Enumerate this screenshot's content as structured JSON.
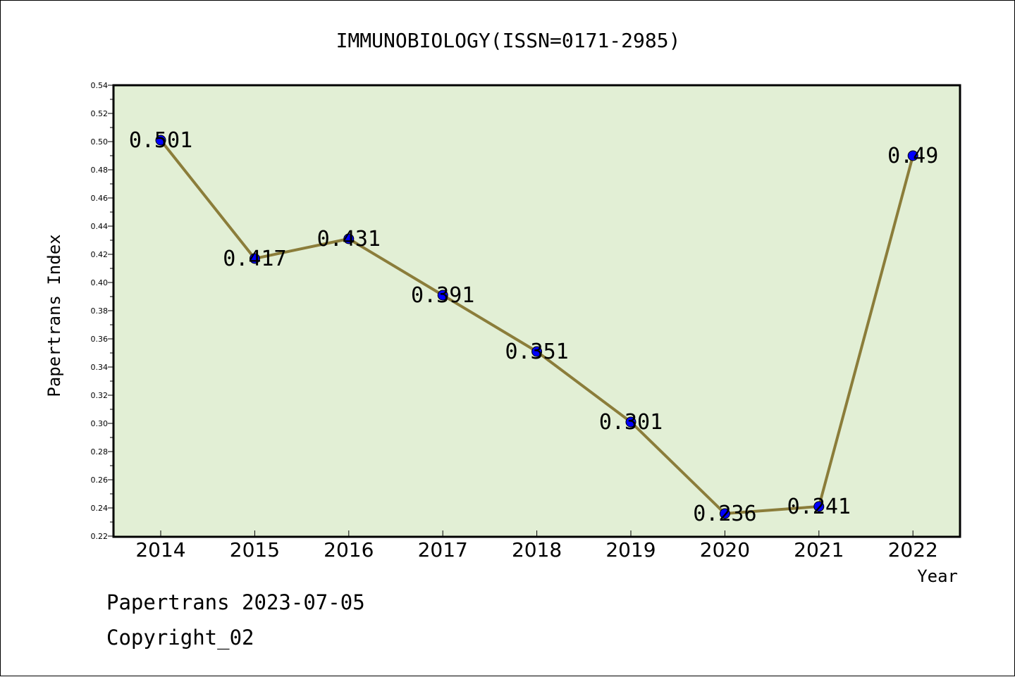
{
  "chart_data": {
    "type": "line",
    "title": "IMMUNOBIOLOGY(ISSN=0171-2985)",
    "xlabel": "Year",
    "ylabel": "Papertrans Index",
    "categories": [
      "2014",
      "2015",
      "2016",
      "2017",
      "2018",
      "2019",
      "2020",
      "2021",
      "2022"
    ],
    "values": [
      0.501,
      0.417,
      0.431,
      0.391,
      0.351,
      0.301,
      0.236,
      0.241,
      0.49
    ],
    "data_labels": [
      "0.501",
      "0.417",
      "0.431",
      "0.391",
      "0.351",
      "0.301",
      "0.236",
      "0.241",
      "0.49"
    ],
    "ylim": [
      0.22,
      0.54
    ],
    "yticks": [
      "0.22",
      "0.24",
      "0.26",
      "0.28",
      "0.30",
      "0.32",
      "0.34",
      "0.36",
      "0.38",
      "0.40",
      "0.42",
      "0.44",
      "0.46",
      "0.48",
      "0.50",
      "0.52",
      "0.54"
    ],
    "grid": false,
    "colors": {
      "plot_background": "#e2efd5",
      "line": "#8b7d3a",
      "marker": "#0000ff"
    }
  },
  "footer": {
    "line1": "Papertrans 2023-07-05",
    "line2": "Copyright_02"
  }
}
